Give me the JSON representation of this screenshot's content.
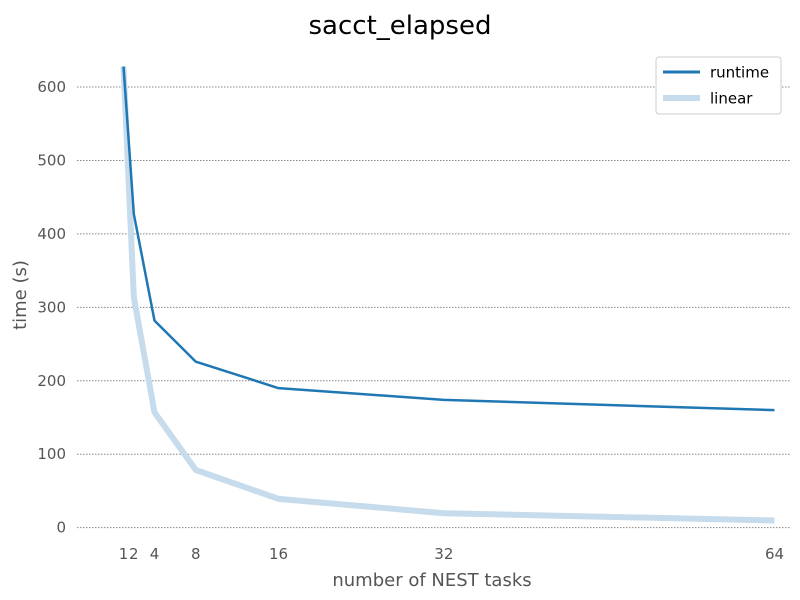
{
  "chart_data": {
    "type": "line",
    "title": "sacct_elapsed",
    "xlabel": "number of NEST tasks",
    "ylabel": "time (s)",
    "xticks": [
      1,
      2,
      4,
      8,
      16,
      32,
      64
    ],
    "xtick_labels": [
      "1",
      "2",
      "4",
      "8",
      "16",
      "32",
      "64"
    ],
    "yticks": [
      0,
      100,
      200,
      300,
      400,
      500,
      600
    ],
    "yticklabels": [
      "0",
      "100",
      "200",
      "300",
      "400",
      "500",
      "600"
    ],
    "xlim": [
      -3.5,
      65.5
    ],
    "ylim": [
      -10,
      660
    ],
    "grid": "horizontal dotted",
    "legend": "top-right",
    "x": [
      1,
      2,
      4,
      8,
      16,
      32,
      64
    ],
    "series": [
      {
        "name": "runtime",
        "values": [
          628,
          427,
          282,
          226,
          190,
          174,
          160
        ],
        "color": "#1f77b4"
      },
      {
        "name": "linear",
        "values": [
          628,
          314,
          157,
          78.5,
          39.25,
          19.6,
          9.8
        ],
        "color": "#c6dbeb"
      }
    ]
  }
}
